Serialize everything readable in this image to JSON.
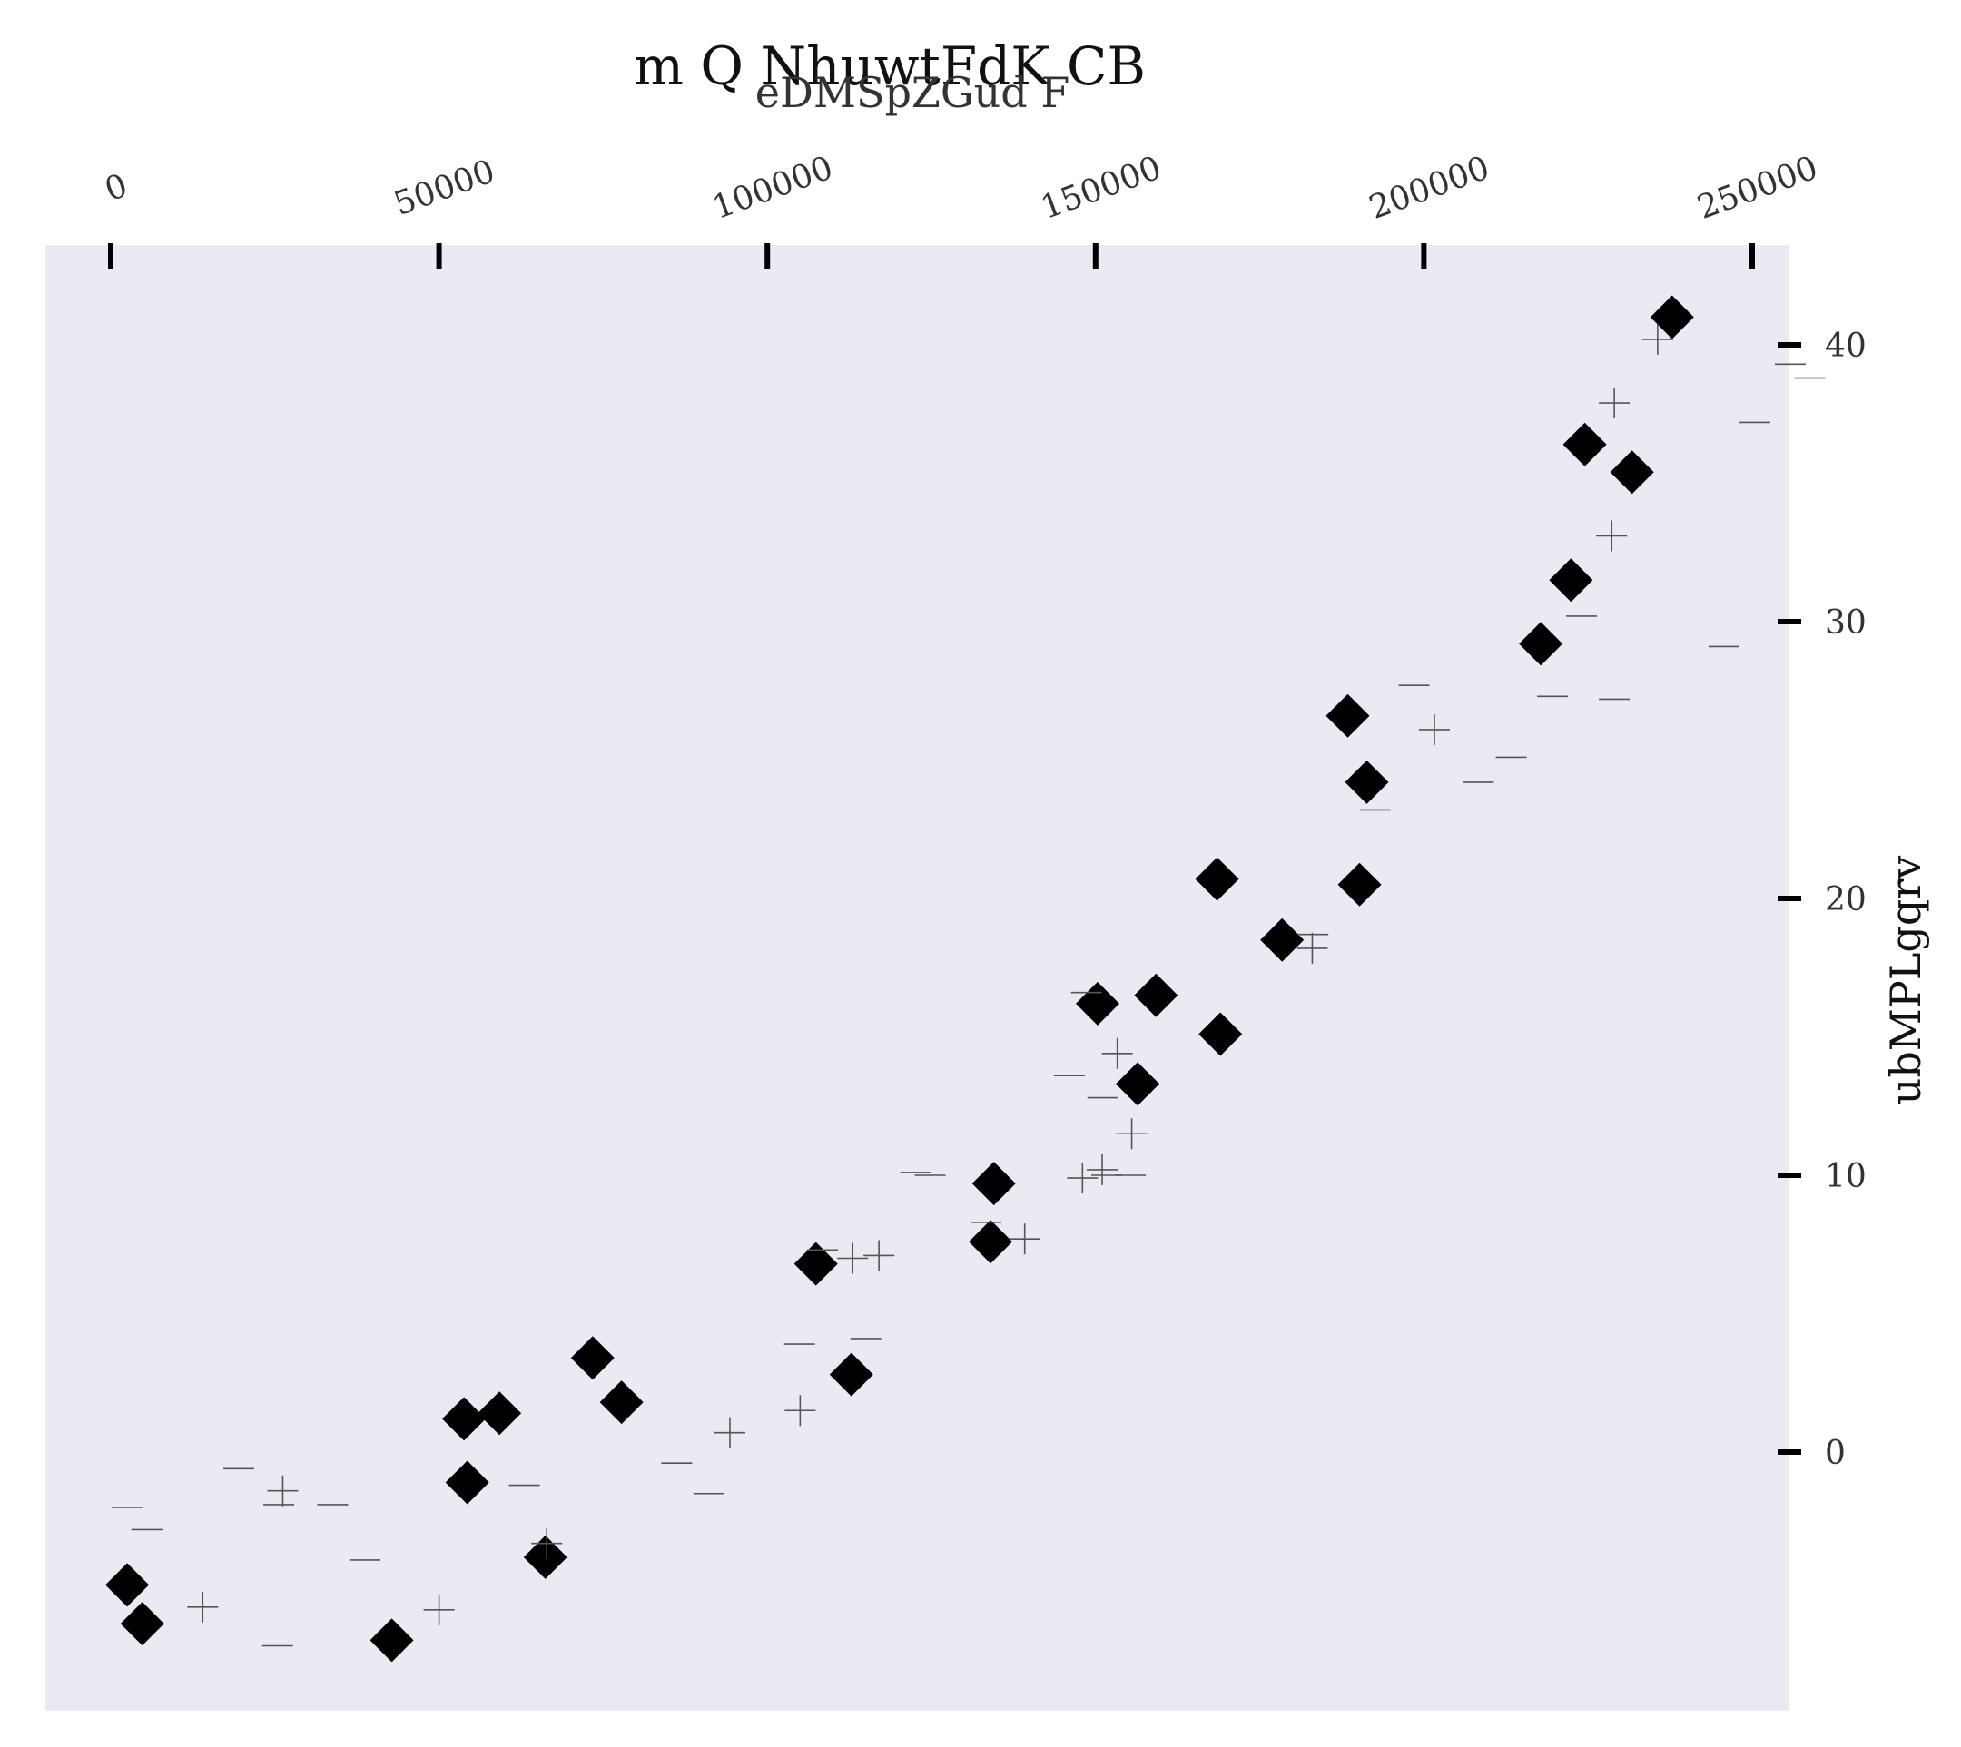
{
  "chart_data": {
    "type": "scatter",
    "title": "m Q NhuwtFdK CB",
    "xlabel": "eDMSpZGud F",
    "ylabel": "ubMPLgqrv",
    "x_axis_position": "top",
    "y_axis_position": "right",
    "xlim": [
      -10000,
      256000
    ],
    "ylim": [
      -9.5,
      43.5
    ],
    "xticks": [
      0,
      50000,
      100000,
      150000,
      200000,
      250000
    ],
    "xtick_labels": [
      "0",
      "50000",
      "100000",
      "150000",
      "200000",
      "250000"
    ],
    "yticks": [
      0,
      10,
      20,
      30,
      40
    ],
    "ytick_labels": [
      "0",
      "10",
      "20",
      "30",
      "40"
    ],
    "grid": false,
    "background": "#e9eaf2",
    "series": [
      {
        "marker": "diamond",
        "color": "#000000",
        "points": [
          [
            2500,
            -4.8
          ],
          [
            4800,
            -6.2
          ],
          [
            42800,
            -6.8
          ],
          [
            53800,
            1.2
          ],
          [
            54300,
            -1.1
          ],
          [
            59200,
            1.4
          ],
          [
            66200,
            -3.8
          ],
          [
            73400,
            3.4
          ],
          [
            77800,
            1.8
          ],
          [
            107400,
            6.8
          ],
          [
            112800,
            2.8
          ],
          [
            134000,
            7.6
          ],
          [
            134500,
            9.7
          ],
          [
            150300,
            16.2
          ],
          [
            156400,
            13.3
          ],
          [
            159200,
            16.5
          ],
          [
            168500,
            20.7
          ],
          [
            169000,
            15.1
          ],
          [
            178400,
            18.5
          ],
          [
            188400,
            26.6
          ],
          [
            190200,
            20.5
          ],
          [
            191300,
            24.2
          ],
          [
            217800,
            29.2
          ],
          [
            222400,
            31.5
          ],
          [
            224500,
            36.4
          ],
          [
            231700,
            35.4
          ],
          [
            237800,
            41.0
          ]
        ]
      },
      {
        "marker": "plus",
        "color": "#555555",
        "points": [
          [
            14000,
            -5.6
          ],
          [
            26200,
            -1.4
          ],
          [
            50000,
            -5.7
          ],
          [
            66400,
            -3.3
          ],
          [
            94300,
            0.7
          ],
          [
            105000,
            1.5
          ],
          [
            113000,
            7.0
          ],
          [
            117000,
            7.1
          ],
          [
            139200,
            7.7
          ],
          [
            148000,
            9.9
          ],
          [
            151000,
            10.2
          ],
          [
            153300,
            14.4
          ],
          [
            155500,
            11.5
          ],
          [
            183000,
            18.2
          ],
          [
            201600,
            26.1
          ],
          [
            228600,
            33.1
          ],
          [
            229000,
            37.9
          ],
          [
            235600,
            40.2
          ]
        ]
      },
      {
        "marker": "hline",
        "color": "#555555",
        "points": [
          [
            2500,
            -2.0
          ],
          [
            5500,
            -2.8
          ],
          [
            19500,
            -0.6
          ],
          [
            25600,
            -1.9
          ],
          [
            33800,
            -1.9
          ],
          [
            38700,
            -3.9
          ],
          [
            25400,
            -7.0
          ],
          [
            63000,
            -1.2
          ],
          [
            86200,
            -0.4
          ],
          [
            91100,
            -1.5
          ],
          [
            104900,
            3.9
          ],
          [
            108400,
            7.3
          ],
          [
            115000,
            4.1
          ],
          [
            122600,
            10.1
          ],
          [
            124800,
            10.0
          ],
          [
            133300,
            8.3
          ],
          [
            146000,
            13.6
          ],
          [
            151100,
            12.8
          ],
          [
            151700,
            10.0
          ],
          [
            155300,
            10.0
          ],
          [
            148600,
            16.6
          ],
          [
            183100,
            18.7
          ],
          [
            198500,
            27.7
          ],
          [
            192600,
            23.2
          ],
          [
            208300,
            24.2
          ],
          [
            213300,
            25.1
          ],
          [
            219600,
            27.3
          ],
          [
            224000,
            30.2
          ],
          [
            229000,
            27.2
          ],
          [
            245700,
            29.1
          ],
          [
            250400,
            37.2
          ],
          [
            255800,
            39.3
          ],
          [
            258800,
            38.8
          ]
        ]
      }
    ]
  }
}
